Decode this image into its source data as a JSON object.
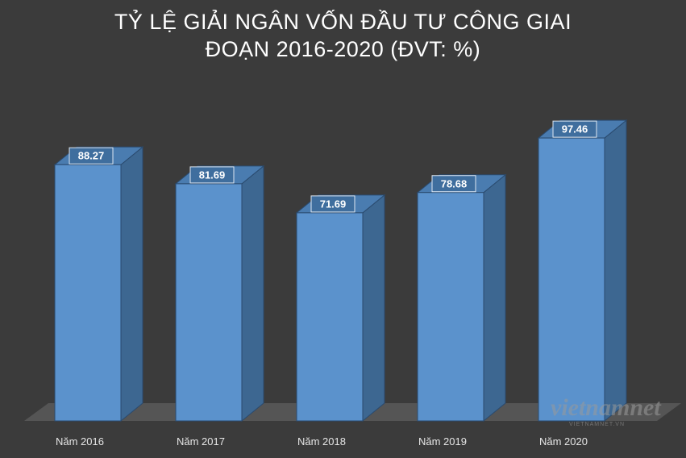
{
  "title_lines": [
    "TỶ LỆ GIẢI NGÂN VỐN ĐẦU TƯ CÔNG GIAI",
    "ĐOẠN 2016-2020 (ĐVT: %)"
  ],
  "watermark": {
    "brand": "vietnamnet",
    "sub": "VIETNAMNET.VN"
  },
  "colors": {
    "background": "#3b3b3b",
    "bar_front": "#5b92cc",
    "bar_side": "#3d6791",
    "bar_top": "#4a7cb0",
    "bar_outline": "#2a4a6e",
    "floor": "#555555",
    "label_bg": "#3f6e9e"
  },
  "chart_data": {
    "type": "bar",
    "title": "TỶ LỆ GIẢI NGÂN VỐN ĐẦU TƯ CÔNG GIAI ĐOẠN 2016-2020 (ĐVT: %)",
    "categories": [
      "Năm 2016",
      "Năm 2017",
      "Năm 2018",
      "Năm 2019",
      "Năm 2020"
    ],
    "values": [
      88.27,
      81.69,
      71.69,
      78.68,
      97.46
    ],
    "value_labels": [
      "88.27",
      "81.69",
      "71.69",
      "78.68",
      "97.46"
    ],
    "xlabel": "",
    "ylabel": "",
    "ylim": [
      0,
      100
    ],
    "grid": false,
    "style": "3d-column"
  }
}
